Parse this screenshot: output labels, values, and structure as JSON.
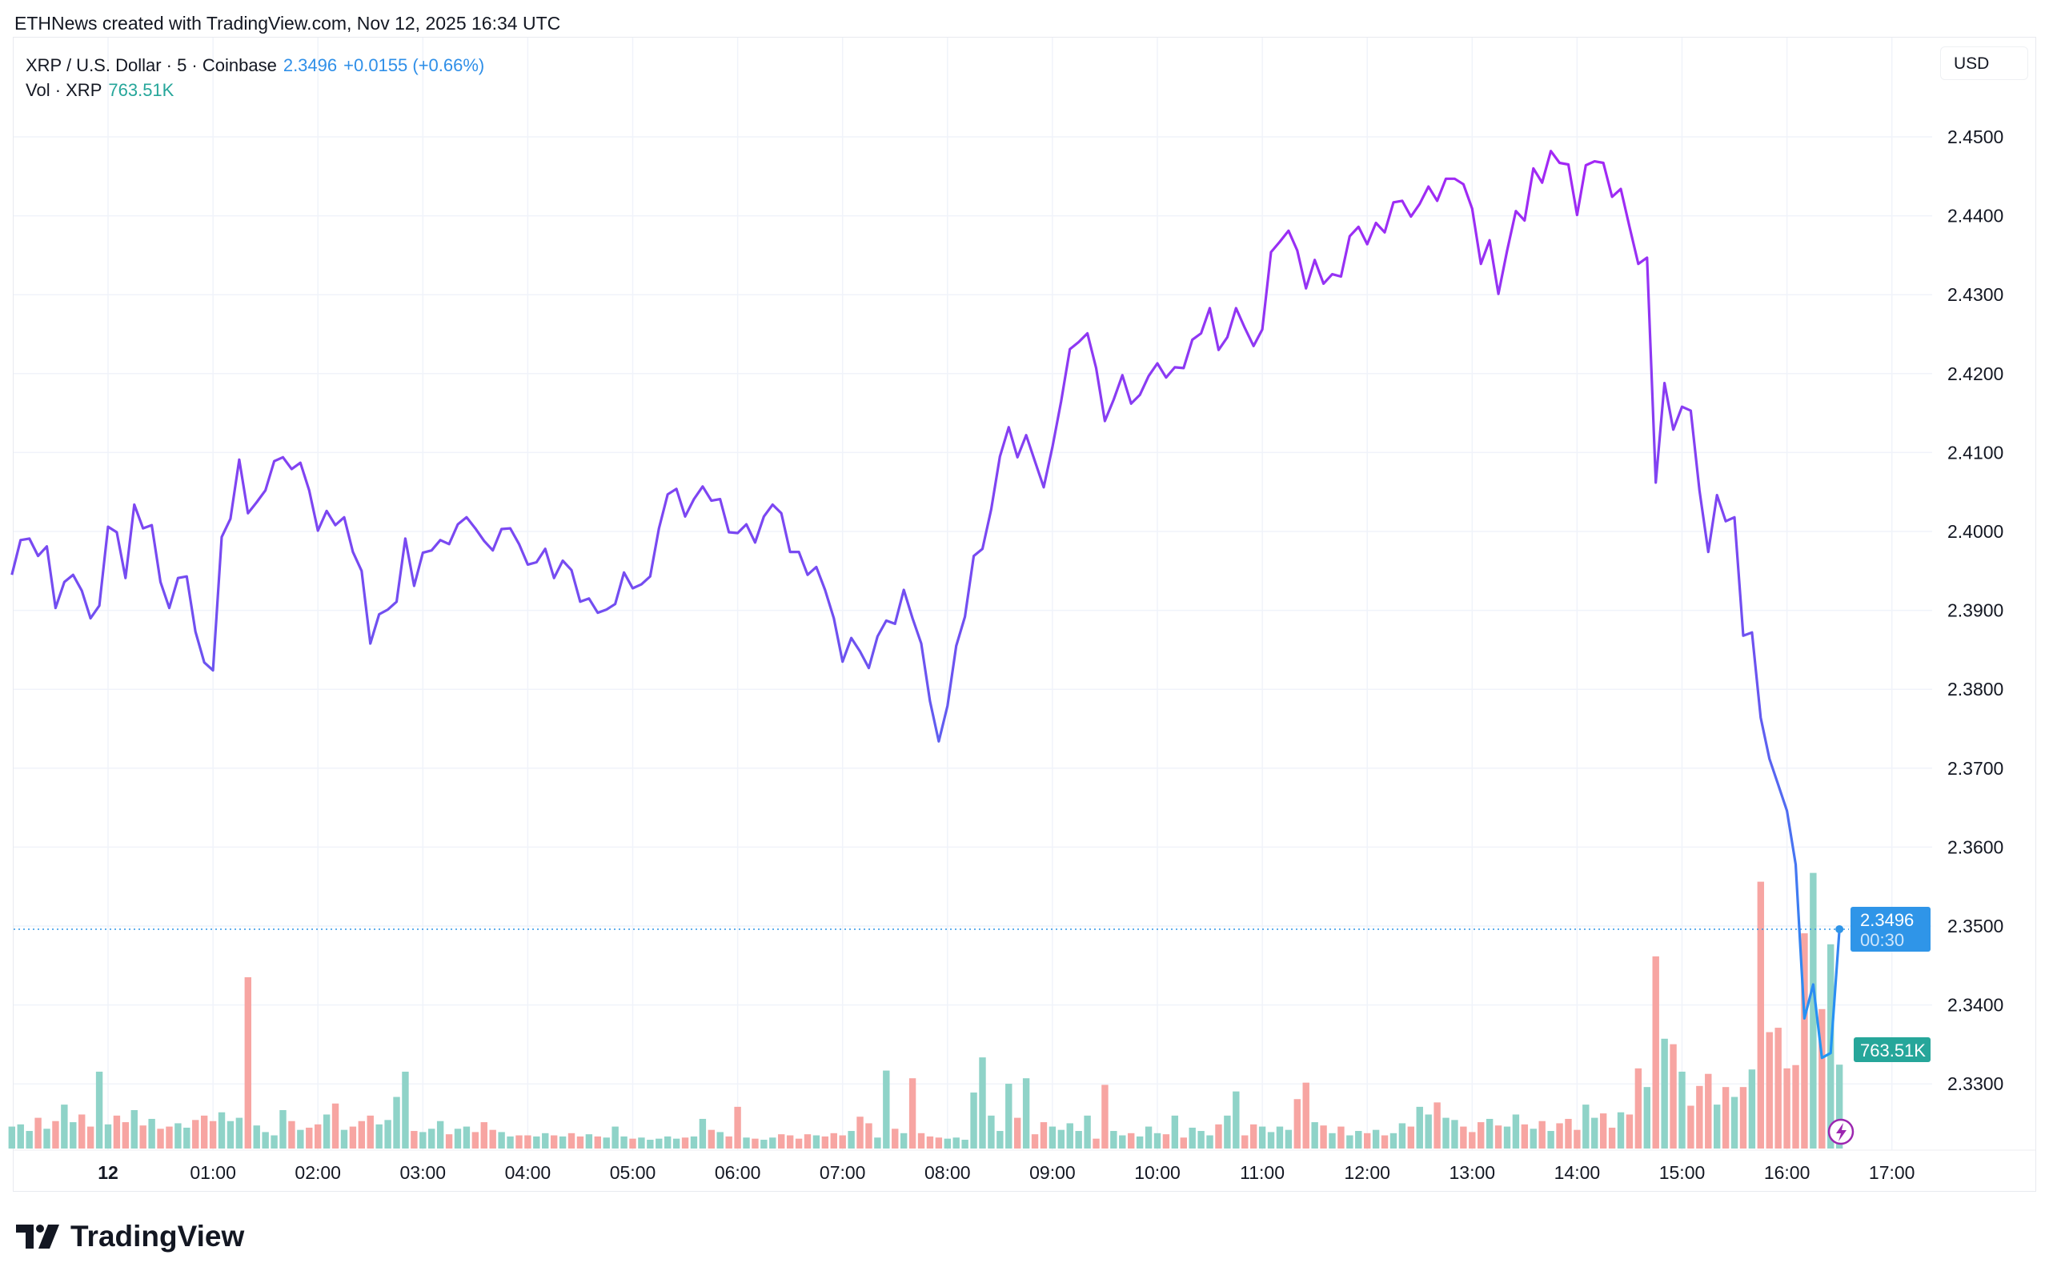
{
  "header": {
    "credit": "ETHNews created with TradingView.com, Nov 12, 2025 16:34 UTC"
  },
  "legend": {
    "symbol": "XRP / U.S. Dollar · 5 · Coinbase",
    "price": "2.3496",
    "change": "+0.0155 (+0.66%)",
    "vol_label": "Vol · XRP",
    "vol_value": "763.51K"
  },
  "currency_button": "USD",
  "price_tag": {
    "price": "2.3496",
    "countdown": "00:30"
  },
  "volume_tag": "763.51K",
  "logo_text": "TradingView",
  "colors": {
    "line_high": "#a526f5",
    "line_low": "#2196f3",
    "vol_up": "#8fd3c8",
    "vol_down": "#f7a5a2",
    "grid": "#f0f3fa",
    "price_tag": "#2f95e8",
    "vol_tag": "#26a69a"
  },
  "chart_data": {
    "type": "line",
    "title": "XRP / U.S. Dollar · 5 · Coinbase",
    "start_hour": -0.9167,
    "end_hour": 16.5,
    "interval_minutes": 5,
    "ylim": [
      2.3225,
      2.455
    ],
    "y_ticks": [
      "2.4500",
      "2.4400",
      "2.4300",
      "2.4200",
      "2.4100",
      "2.4000",
      "2.3900",
      "2.3800",
      "2.3700",
      "2.3600",
      "2.3500",
      "2.3400",
      "2.3300"
    ],
    "x_ticks": [
      {
        "label": "12",
        "hour": 0
      },
      {
        "label": "01:00",
        "hour": 1
      },
      {
        "label": "02:00",
        "hour": 2
      },
      {
        "label": "03:00",
        "hour": 3
      },
      {
        "label": "04:00",
        "hour": 4
      },
      {
        "label": "05:00",
        "hour": 5
      },
      {
        "label": "06:00",
        "hour": 6
      },
      {
        "label": "07:00",
        "hour": 7
      },
      {
        "label": "08:00",
        "hour": 8
      },
      {
        "label": "09:00",
        "hour": 9
      },
      {
        "label": "10:00",
        "hour": 10
      },
      {
        "label": "11:00",
        "hour": 11
      },
      {
        "label": "12:00",
        "hour": 12
      },
      {
        "label": "13:00",
        "hour": 13
      },
      {
        "label": "14:00",
        "hour": 14
      },
      {
        "label": "15:00",
        "hour": 15
      },
      {
        "label": "16:00",
        "hour": 16
      },
      {
        "label": "17:00",
        "hour": 17
      }
    ],
    "last_price": 2.3496,
    "price": [
      2.3945,
      2.3989,
      2.3991,
      2.3969,
      2.3981,
      2.3903,
      2.3936,
      2.3945,
      2.3925,
      2.389,
      2.3906,
      2.4006,
      2.3999,
      2.3941,
      2.4034,
      2.4004,
      2.4008,
      2.3936,
      2.3903,
      2.3941,
      2.3943,
      2.3873,
      2.3834,
      2.3824,
      2.3993,
      2.4016,
      2.4091,
      2.4023,
      2.4037,
      2.4052,
      2.4089,
      2.4094,
      2.4079,
      2.4087,
      2.4052,
      2.4001,
      2.4026,
      2.4008,
      2.4018,
      2.3974,
      2.395,
      2.3858,
      2.3895,
      2.3901,
      2.3911,
      2.3991,
      2.3931,
      2.3973,
      2.3976,
      2.3989,
      2.3984,
      2.4009,
      2.4018,
      2.4004,
      2.3988,
      2.3976,
      2.4003,
      2.4004,
      2.3984,
      2.3958,
      2.3961,
      2.3978,
      2.3941,
      2.3963,
      2.3951,
      2.3911,
      2.3915,
      2.3897,
      2.3901,
      2.3908,
      2.3948,
      2.3928,
      2.3933,
      2.3943,
      2.4004,
      2.4047,
      2.4054,
      2.4019,
      2.4041,
      2.4057,
      2.4039,
      2.4041,
      2.3999,
      2.3998,
      2.4009,
      2.3986,
      2.4019,
      2.4034,
      2.4023,
      2.3974,
      2.3974,
      2.3945,
      2.3955,
      2.3926,
      2.389,
      2.3835,
      2.3865,
      2.3848,
      2.3827,
      2.3867,
      2.3887,
      2.3883,
      2.3926,
      2.389,
      2.3858,
      2.3785,
      2.3734,
      2.3779,
      2.3855,
      2.3892,
      2.3969,
      2.3978,
      2.4028,
      2.4095,
      2.4132,
      2.4094,
      2.4122,
      2.4089,
      2.4056,
      2.4107,
      2.4165,
      2.4231,
      2.424,
      2.4251,
      2.4207,
      2.414,
      2.4167,
      2.4198,
      2.4162,
      2.4173,
      2.4197,
      2.4213,
      2.4195,
      2.4208,
      2.4207,
      2.4243,
      2.4251,
      2.4283,
      2.423,
      2.4246,
      2.4283,
      2.4258,
      2.4235,
      2.4256,
      2.4354,
      2.4367,
      2.4381,
      2.4356,
      2.4308,
      2.4344,
      2.4314,
      2.4326,
      2.4323,
      2.4374,
      2.4386,
      2.4364,
      2.4391,
      2.4379,
      2.4417,
      2.4419,
      2.4399,
      2.4415,
      2.4437,
      2.4419,
      2.4447,
      2.4447,
      2.444,
      2.4409,
      2.4339,
      2.4369,
      2.4301,
      2.4356,
      2.4406,
      2.4394,
      2.446,
      2.4442,
      2.4482,
      2.4467,
      2.4465,
      2.4401,
      2.4464,
      2.4469,
      2.4467,
      2.4424,
      2.4434,
      2.4386,
      2.4339,
      2.4347,
      2.4062,
      2.4188,
      2.4129,
      2.4158,
      2.4153,
      2.4052,
      2.3974,
      2.4046,
      2.4013,
      2.4018,
      2.3868,
      2.3872,
      2.3764,
      2.3712,
      2.3679,
      2.3646,
      2.3578,
      2.3383,
      2.3426,
      2.3333,
      2.3339,
      2.3496
    ],
    "volume_k": [
      200,
      220,
      160,
      280,
      180,
      250,
      400,
      240,
      310,
      200,
      700,
      220,
      300,
      240,
      350,
      210,
      270,
      180,
      200,
      230,
      190,
      260,
      300,
      250,
      330,
      250,
      280,
      1560,
      210,
      150,
      120,
      350,
      250,
      170,
      190,
      220,
      310,
      410,
      170,
      200,
      250,
      300,
      220,
      260,
      470,
      700,
      160,
      150,
      180,
      250,
      130,
      180,
      200,
      150,
      240,
      170,
      150,
      110,
      120,
      120,
      110,
      140,
      120,
      110,
      140,
      110,
      130,
      110,
      100,
      200,
      110,
      90,
      100,
      80,
      90,
      110,
      90,
      100,
      110,
      270,
      170,
      150,
      110,
      380,
      100,
      90,
      80,
      100,
      130,
      120,
      90,
      130,
      120,
      110,
      140,
      120,
      160,
      290,
      230,
      100,
      710,
      180,
      140,
      640,
      140,
      110,
      100,
      90,
      100,
      80,
      510,
      830,
      300,
      160,
      590,
      280,
      640,
      130,
      240,
      200,
      170,
      230,
      160,
      300,
      90,
      580,
      160,
      120,
      140,
      110,
      200,
      140,
      130,
      300,
      100,
      190,
      160,
      120,
      220,
      300,
      520,
      120,
      220,
      200,
      150,
      200,
      170,
      450,
      600,
      240,
      210,
      140,
      200,
      120,
      160,
      140,
      170,
      120,
      140,
      230,
      200,
      380,
      310,
      420,
      280,
      260,
      200,
      150,
      240,
      270,
      210,
      200,
      310,
      220,
      180,
      250,
      160,
      230,
      270,
      170,
      400,
      280,
      320,
      190,
      330,
      310,
      730,
      560,
      1750,
      1000,
      950,
      700,
      390,
      570,
      680,
      400,
      560,
      470,
      560,
      720,
      2430,
      1060,
      1100,
      730,
      760,
      1960,
      2510,
      1270,
      1860,
      764
    ]
  }
}
